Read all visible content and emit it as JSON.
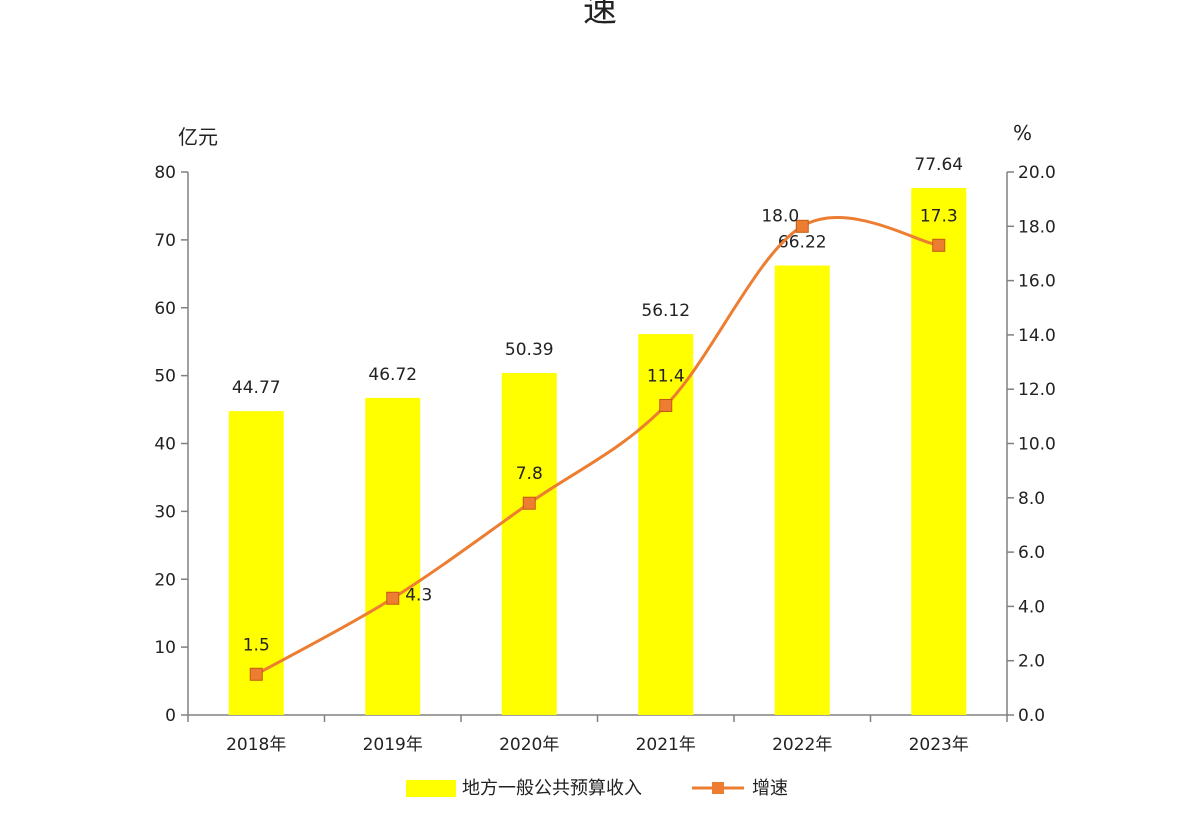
{
  "page": {
    "title": "速"
  },
  "chart_data": {
    "type": "bar",
    "categories": [
      "2018年",
      "2019年",
      "2020年",
      "2021年",
      "2022年",
      "2023年"
    ],
    "series": [
      {
        "name": "地方一般公共预算收入",
        "chart_type": "bar",
        "axis": "left",
        "values": [
          44.77,
          46.72,
          50.39,
          56.12,
          66.22,
          77.64
        ],
        "labels": [
          "44.77",
          "46.72",
          "50.39",
          "56.12",
          "66.22",
          "77.64"
        ],
        "color": "#FFFF00"
      },
      {
        "name": "增速",
        "chart_type": "line",
        "axis": "right",
        "values": [
          1.5,
          4.3,
          7.8,
          11.4,
          18.0,
          17.3
        ],
        "labels": [
          "1.5",
          "4.3",
          "7.8",
          "11.4",
          "18.0",
          "17.3"
        ],
        "color": "#ED7D31",
        "smooth": true,
        "marker": "square"
      }
    ],
    "y_left": {
      "unit": "亿元",
      "min": 0,
      "max": 80,
      "ticks": [
        "0",
        "10",
        "20",
        "30",
        "40",
        "50",
        "60",
        "70",
        "80"
      ]
    },
    "y_right": {
      "unit": "%",
      "min": 0,
      "max": 20,
      "ticks": [
        "0.0",
        "2.0",
        "4.0",
        "6.0",
        "8.0",
        "10.0",
        "12.0",
        "14.0",
        "16.0",
        "18.0",
        "20.0"
      ]
    },
    "grid": false,
    "legend_position": "bottom",
    "axis_color": "#808080"
  }
}
